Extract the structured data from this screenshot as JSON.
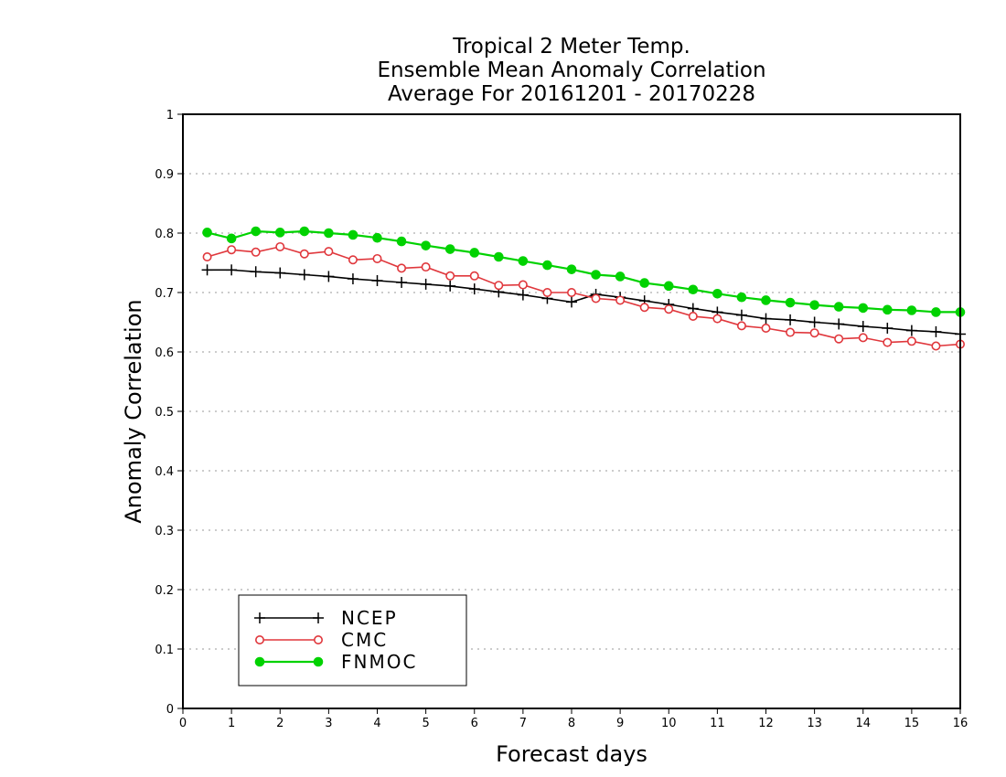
{
  "chart_data": {
    "type": "line",
    "title": [
      "Tropical 2 Meter Temp.",
      "Ensemble Mean Anomaly Correlation",
      "Average For 20161201 - 20170228"
    ],
    "xlabel": "Forecast days",
    "ylabel": "Anomaly Correlation",
    "xlim": [
      0,
      16
    ],
    "ylim": [
      0,
      1
    ],
    "xticks": [
      "0",
      "1",
      "2",
      "3",
      "4",
      "5",
      "6",
      "7",
      "8",
      "9",
      "10",
      "11",
      "12",
      "13",
      "14",
      "15",
      "16"
    ],
    "yticks": [
      "0",
      "0.1",
      "0.2",
      "0.3",
      "0.4",
      "0.5",
      "0.6",
      "0.7",
      "0.8",
      "0.9",
      "1"
    ],
    "grid": true,
    "legend_position": "bottom-left",
    "x": [
      0.5,
      1,
      1.5,
      2,
      2.5,
      3,
      3.5,
      4,
      4.5,
      5,
      5.5,
      6,
      6.5,
      7,
      7.5,
      8,
      8.5,
      9,
      9.5,
      10,
      10.5,
      11,
      11.5,
      12,
      12.5,
      13,
      13.5,
      14,
      14.5,
      15,
      15.5,
      16
    ],
    "series": [
      {
        "name": "NCEP",
        "color": "#000000",
        "marker": "plus",
        "values": [
          0.738,
          0.738,
          0.735,
          0.733,
          0.73,
          0.727,
          0.723,
          0.72,
          0.717,
          0.714,
          0.711,
          0.706,
          0.701,
          0.696,
          0.69,
          0.684,
          0.697,
          0.692,
          0.686,
          0.68,
          0.673,
          0.667,
          0.662,
          0.656,
          0.654,
          0.65,
          0.647,
          0.643,
          0.64,
          0.636,
          0.634,
          0.63
        ]
      },
      {
        "name": "CMC",
        "color": "#e0373c",
        "marker": "open-circle",
        "values": [
          0.76,
          0.772,
          0.768,
          0.777,
          0.765,
          0.769,
          0.755,
          0.757,
          0.741,
          0.743,
          0.728,
          0.728,
          0.712,
          0.713,
          0.7,
          0.7,
          0.69,
          0.687,
          0.675,
          0.672,
          0.66,
          0.656,
          0.644,
          0.64,
          0.633,
          0.632,
          0.622,
          0.624,
          0.616,
          0.618,
          0.61,
          0.613
        ]
      },
      {
        "name": "FNMOC",
        "color": "#00d200",
        "marker": "filled-circle",
        "values": [
          0.801,
          0.791,
          0.803,
          0.801,
          0.803,
          0.8,
          0.797,
          0.792,
          0.786,
          0.779,
          0.773,
          0.767,
          0.76,
          0.753,
          0.746,
          0.739,
          0.73,
          0.727,
          0.716,
          0.711,
          0.705,
          0.698,
          0.692,
          0.687,
          0.683,
          0.679,
          0.676,
          0.674,
          0.671,
          0.67,
          0.667,
          0.667
        ]
      }
    ]
  }
}
